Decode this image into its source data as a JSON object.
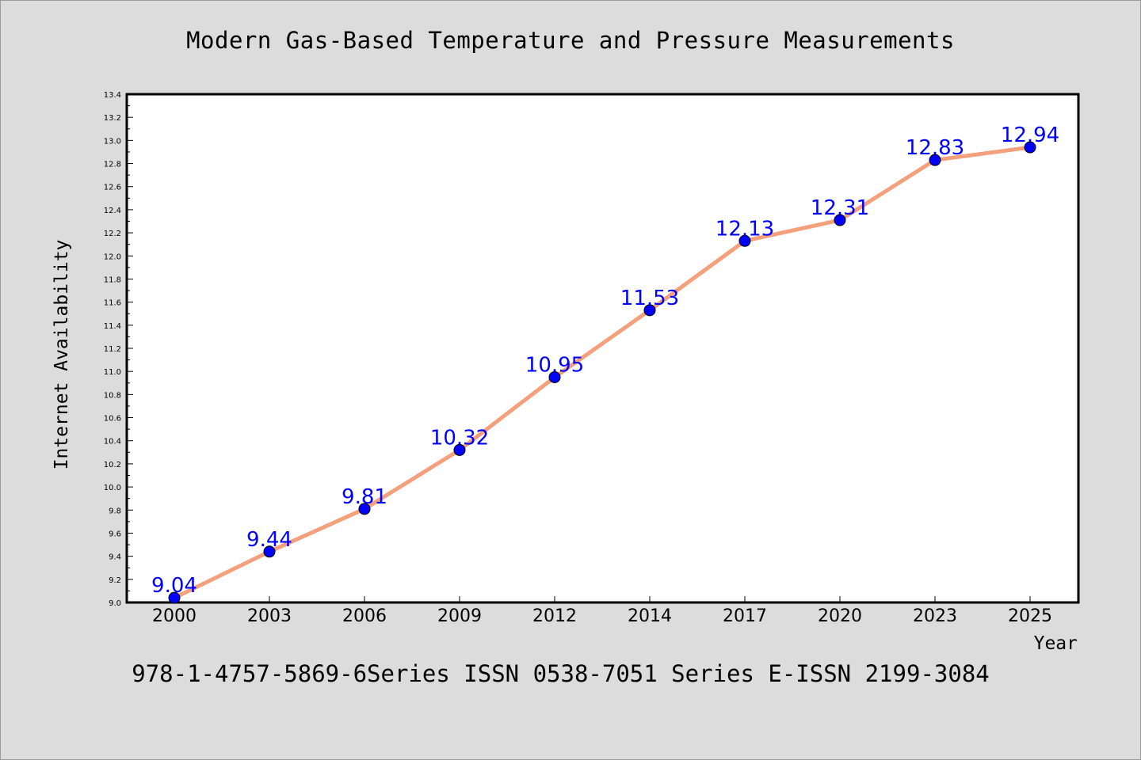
{
  "title": "Modern Gas-Based Temperature and Pressure Measurements",
  "footer": "978-1-4757-5869-6Series ISSN 0538-7051 Series E-ISSN 2199-3084",
  "chart_data": {
    "type": "line",
    "title": "Modern Gas-Based Temperature and Pressure Measurements",
    "xlabel": "Year",
    "ylabel": "Internet Availability",
    "categories": [
      "2000",
      "2003",
      "2006",
      "2009",
      "2012",
      "2014",
      "2017",
      "2020",
      "2023",
      "2025"
    ],
    "series": [
      {
        "values": [
          9.04,
          9.44,
          9.81,
          10.32,
          10.95,
          11.53,
          12.13,
          12.31,
          12.83,
          12.94
        ],
        "data_labels": [
          "9.04",
          "9.44",
          "9.81",
          "10.32",
          "10.95",
          "11.53",
          "12.13",
          "12.31",
          "12.83",
          "12.94"
        ],
        "line_color": "#f4a07c",
        "marker_color": "#0000ff"
      }
    ],
    "ylim": [
      9.0,
      13.4
    ],
    "yticks": [
      "9.0",
      "9.2",
      "9.4",
      "9.6",
      "9.8",
      "10.0",
      "10.2",
      "10.4",
      "10.6",
      "10.8",
      "11.0",
      "11.2",
      "11.4",
      "11.6",
      "11.8",
      "12.0",
      "12.2",
      "12.4",
      "12.6",
      "12.8",
      "13.0",
      "13.2",
      "13.4"
    ],
    "grid": false,
    "legend": "none"
  }
}
